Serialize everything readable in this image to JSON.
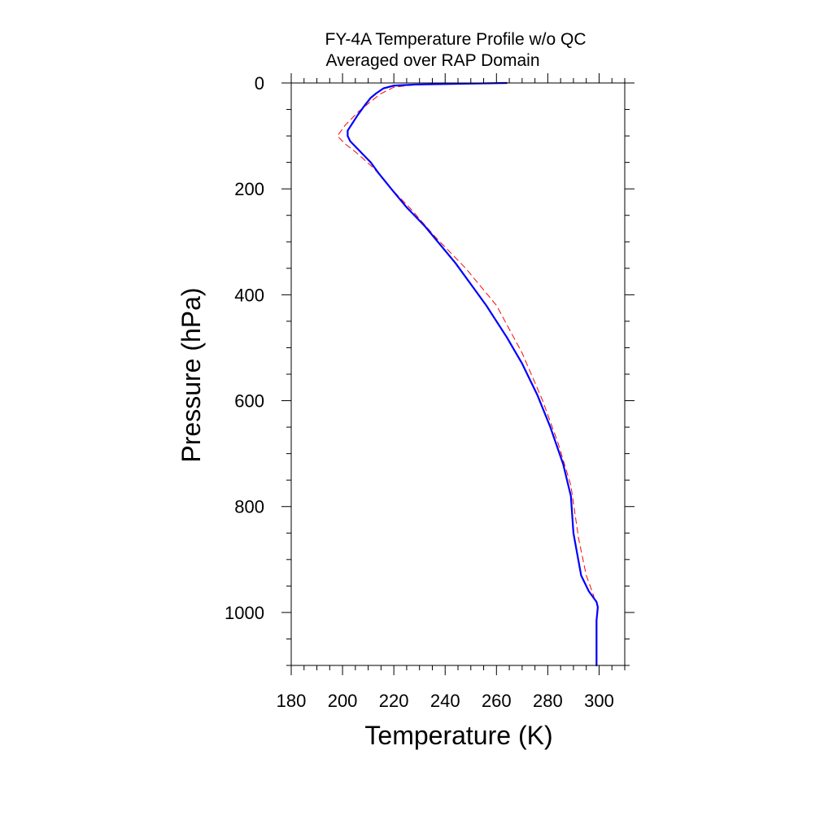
{
  "chart_data": {
    "type": "line",
    "title": "FY-4A Temperature Profile w/o QC",
    "subtitle": "Averaged over RAP Domain",
    "xlabel": "Temperature (K)",
    "ylabel": "Pressure (hPa)",
    "xlim": [
      180,
      310
    ],
    "ylim": [
      0,
      1100
    ],
    "y_inverted": true,
    "grid": false,
    "x_ticks": [
      180,
      200,
      220,
      240,
      260,
      280,
      300
    ],
    "y_ticks": [
      0,
      200,
      400,
      600,
      800,
      1000
    ],
    "x_tick_labels": [
      "180",
      "200",
      "220",
      "240",
      "260",
      "280",
      "300"
    ],
    "y_tick_labels": [
      "0",
      "200",
      "400",
      "600",
      "800",
      "1000"
    ],
    "series": [
      {
        "color": "#0000ff",
        "style": "solid",
        "points": [
          [
            264,
            0
          ],
          [
            240,
            2
          ],
          [
            228,
            3
          ],
          [
            220,
            5
          ],
          [
            216,
            10
          ],
          [
            213,
            20
          ],
          [
            211,
            28
          ],
          [
            209,
            40
          ],
          [
            206,
            60
          ],
          [
            204,
            75
          ],
          [
            202,
            90
          ],
          [
            202,
            100
          ],
          [
            203,
            110
          ],
          [
            206,
            125
          ],
          [
            211,
            150
          ],
          [
            214,
            170
          ],
          [
            219,
            200
          ],
          [
            225,
            235
          ],
          [
            232,
            270
          ],
          [
            244,
            340
          ],
          [
            256,
            420
          ],
          [
            264,
            480
          ],
          [
            270,
            530
          ],
          [
            276,
            590
          ],
          [
            281,
            650
          ],
          [
            286,
            720
          ],
          [
            289,
            780
          ],
          [
            290,
            850
          ],
          [
            293,
            930
          ],
          [
            296,
            960
          ],
          [
            299,
            980
          ],
          [
            299.5,
            990
          ],
          [
            299,
            1015
          ],
          [
            299,
            1100
          ]
        ]
      },
      {
        "color": "#ff0000",
        "style": "dashed",
        "points": [
          [
            262,
            0
          ],
          [
            238,
            2
          ],
          [
            227,
            4
          ],
          [
            220,
            8
          ],
          [
            215,
            20
          ],
          [
            211,
            35
          ],
          [
            206,
            55
          ],
          [
            201,
            80
          ],
          [
            198,
            100
          ],
          [
            201,
            115
          ],
          [
            205,
            130
          ],
          [
            212,
            160
          ],
          [
            219,
            200
          ],
          [
            227,
            240
          ],
          [
            236,
            290
          ],
          [
            248,
            350
          ],
          [
            260,
            420
          ],
          [
            270,
            510
          ],
          [
            278,
            600
          ],
          [
            284,
            680
          ],
          [
            289,
            760
          ],
          [
            292,
            860
          ],
          [
            295,
            930
          ],
          [
            298,
            970
          ]
        ]
      }
    ]
  }
}
